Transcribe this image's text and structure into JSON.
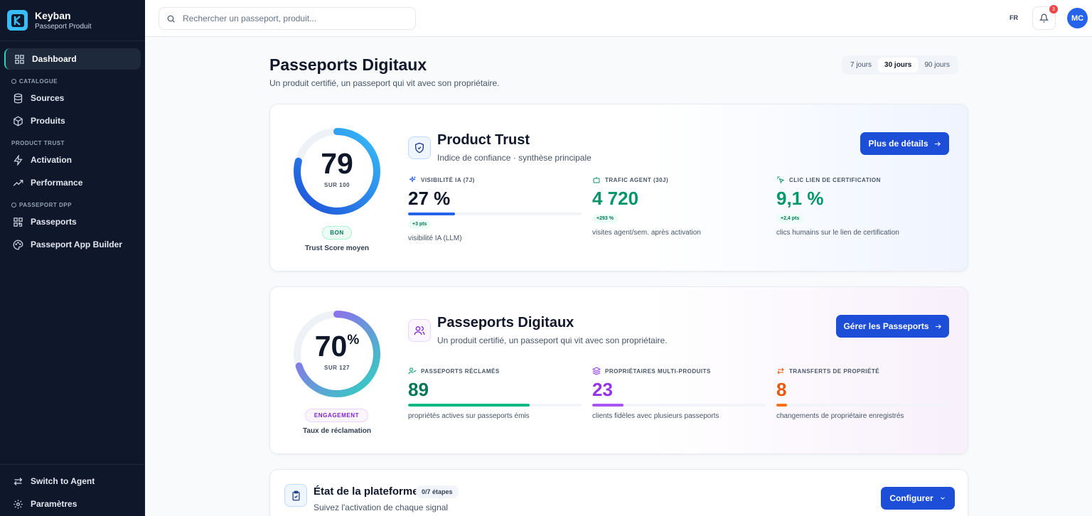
{
  "brand": {
    "name": "Keyban",
    "subtitle": "Passeport Produit"
  },
  "sidebar": {
    "items": [
      {
        "label": "Dashboard",
        "icon": "dashboard-icon",
        "active": true
      }
    ],
    "sections": [
      {
        "title": "CATALOGUE",
        "items": [
          {
            "label": "Sources",
            "icon": "database-icon"
          },
          {
            "label": "Produits",
            "icon": "package-icon"
          }
        ]
      },
      {
        "title": "PRODUCT TRUST",
        "items": [
          {
            "label": "Activation",
            "icon": "zap-icon"
          },
          {
            "label": "Performance",
            "icon": "trending-up-icon"
          }
        ]
      },
      {
        "title": "PASSEPORT DPP",
        "items": [
          {
            "label": "Passeports",
            "icon": "qr-code-icon"
          },
          {
            "label": "Passeport App Builder",
            "icon": "palette-icon"
          }
        ]
      }
    ],
    "bottom": [
      {
        "label": "Switch to Agent",
        "icon": "switch-icon"
      },
      {
        "label": "Paramètres",
        "icon": "gear-icon"
      }
    ]
  },
  "topbar": {
    "search_placeholder": "Rechercher un passeport, produit...",
    "language": "FR",
    "notification_count": "3",
    "avatar_initials": "MC"
  },
  "page": {
    "title": "Passeports Digitaux",
    "subtitle": "Un produit certifié, un passeport qui vit avec son propriétaire.",
    "ranges": [
      {
        "label": "7 jours",
        "active": false
      },
      {
        "label": "30 jours",
        "active": true
      },
      {
        "label": "90 jours",
        "active": false
      }
    ]
  },
  "trust_card": {
    "score": "79",
    "score_sub": "SUR 100",
    "score_fraction": 0.79,
    "status": "BON",
    "caption": "Trust Score moyen",
    "title": "Product Trust",
    "subtitle": "Indice de confiance · synthèse principale",
    "cta": "Plus de détails",
    "metrics": [
      {
        "label": "VISIBILITÉ IA (7J)",
        "value": "27 %",
        "delta": "+3 pts",
        "desc": "visibilité IA (LLM)",
        "fill": 0.27,
        "color": "#0f172a",
        "bar_color": "#2563eb",
        "icon": "sparkles-icon"
      },
      {
        "label": "TRAFIC AGENT (30J)",
        "value": "4 720",
        "delta": "+293 %",
        "desc": "visites agent/sem. après activation",
        "color": "#059669",
        "icon": "bot-icon"
      },
      {
        "label": "CLIC LIEN DE CERTIFICATION",
        "value": "9,1 %",
        "delta": "+2,4 pts",
        "desc": "clics humains sur le lien de certification",
        "color": "#059669",
        "icon": "link-click-icon"
      }
    ]
  },
  "passport_card": {
    "score": "70",
    "score_unit": "%",
    "score_sub": "SUR 127",
    "score_fraction": 0.7,
    "status": "ENGAGEMENT",
    "caption": "Taux de réclamation",
    "title": "Passeports Digitaux",
    "subtitle": "Un produit certifié, un passeport qui vit avec son propriétaire.",
    "cta": "Gérer les Passeports",
    "metrics": [
      {
        "label": "PASSEPORTS RÉCLAMÉS",
        "value": "89",
        "desc": "propriétés actives sur passeports émis",
        "fill": 0.7,
        "color": "#047857",
        "bar_color": "#10b981",
        "icon": "user-check-icon"
      },
      {
        "label": "PROPRIÉTAIRES MULTI-PRODUITS",
        "value": "23",
        "desc": "clients fidèles avec plusieurs passeports",
        "fill": 0.18,
        "color": "#9333ea",
        "bar_color": "#a855f7",
        "icon": "layers-icon"
      },
      {
        "label": "TRANSFERTS DE PROPRIÉTÉ",
        "value": "8",
        "desc": "changements de propriétaire enregistrés",
        "fill": 0.06,
        "color": "#ea580c",
        "bar_color": "#f97316",
        "icon": "transfer-icon"
      }
    ]
  },
  "platform_card": {
    "title": "État de la plateforme",
    "steps": "0/7 étapes",
    "subtitle": "Suivez l'activation de chaque signal",
    "cta": "Configurer"
  },
  "colors": {
    "sidebar_bg": "#0f172a",
    "primary": "#1d4ed8",
    "accent_teal": "#2dd4bf",
    "success": "#059669",
    "purple": "#9333ea",
    "orange": "#ea580c"
  }
}
